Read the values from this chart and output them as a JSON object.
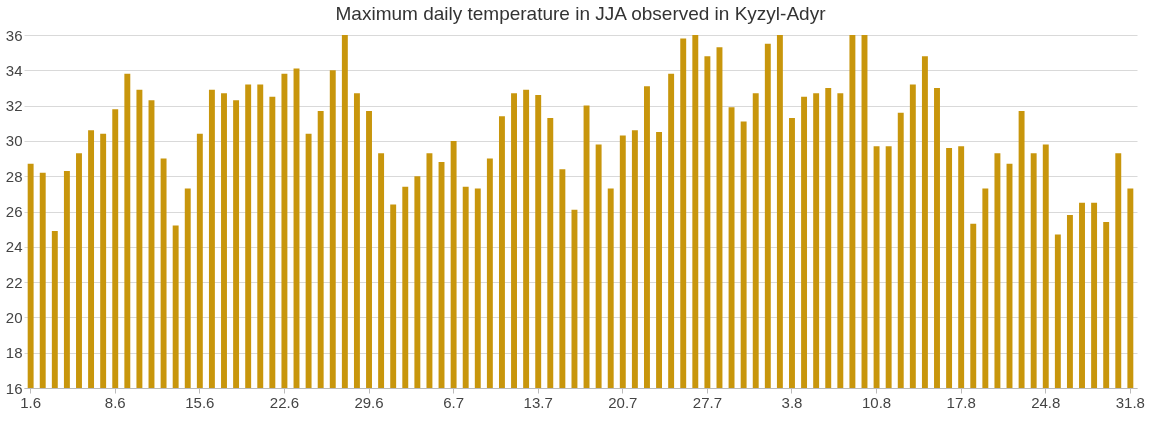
{
  "chart_data": {
    "type": "bar",
    "title": "Maximum daily temperature in JJA observed in Kyzyl-Adyr",
    "categories": [
      "1.6",
      null,
      null,
      null,
      null,
      null,
      null,
      "8.6",
      null,
      null,
      null,
      null,
      null,
      null,
      "15.6",
      null,
      null,
      null,
      null,
      null,
      null,
      "22.6",
      null,
      null,
      null,
      null,
      null,
      null,
      "29.6",
      null,
      null,
      null,
      null,
      null,
      null,
      "6.7",
      null,
      null,
      null,
      null,
      null,
      null,
      "13.7",
      null,
      null,
      null,
      null,
      null,
      null,
      "20.7",
      null,
      null,
      null,
      null,
      null,
      null,
      "27.7",
      null,
      null,
      null,
      null,
      null,
      null,
      "3.8",
      null,
      null,
      null,
      null,
      null,
      null,
      "10.8",
      null,
      null,
      null,
      null,
      null,
      null,
      "17.8",
      null,
      null,
      null,
      null,
      null,
      null,
      "24.8",
      null,
      null,
      null,
      null,
      null,
      null,
      "31.8"
    ],
    "values": [
      28.7,
      28.2,
      24.9,
      28.3,
      29.3,
      30.6,
      30.4,
      31.8,
      33.8,
      32.9,
      32.3,
      29.0,
      25.2,
      27.3,
      30.4,
      32.9,
      32.7,
      32.3,
      33.2,
      33.2,
      32.5,
      33.8,
      34.1,
      30.4,
      31.7,
      34.0,
      36.0,
      32.7,
      31.7,
      29.3,
      26.4,
      27.4,
      28.0,
      29.3,
      28.8,
      30.0,
      27.4,
      27.3,
      29.0,
      31.4,
      32.7,
      32.9,
      32.6,
      31.3,
      28.4,
      26.1,
      32.0,
      29.8,
      27.3,
      30.3,
      30.6,
      33.1,
      30.5,
      33.8,
      35.8,
      36.0,
      34.8,
      35.3,
      31.9,
      31.1,
      32.7,
      35.5,
      36.0,
      31.3,
      32.5,
      32.7,
      33.0,
      32.7,
      36.0,
      36.0,
      29.7,
      29.7,
      31.6,
      33.2,
      34.8,
      33.0,
      29.6,
      29.7,
      25.3,
      27.3,
      29.3,
      28.7,
      31.7,
      29.3,
      29.8,
      24.7,
      25.8,
      26.5,
      26.5,
      25.4,
      29.3,
      27.3
    ],
    "color": "#c8960c",
    "ylim": [
      16,
      36
    ],
    "yticks": [
      16,
      18,
      20,
      22,
      24,
      26,
      28,
      30,
      32,
      34,
      36
    ],
    "grid": "y"
  }
}
